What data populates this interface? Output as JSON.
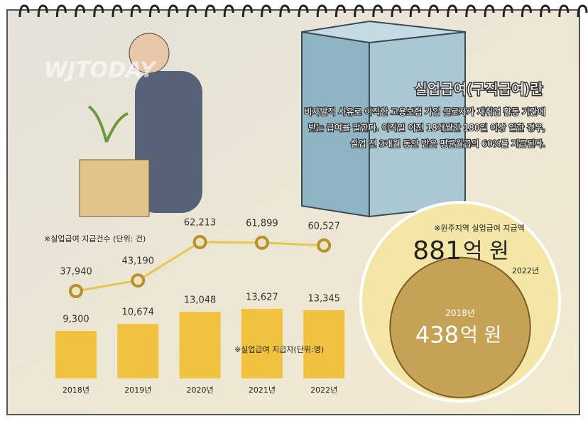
{
  "header": {
    "watermark": "WJTODAY",
    "title": "실업급여(구직급여)란",
    "description": [
      "비자발적 사유로 이직한 고용보험 가입 근로자가 재취업 활동 기간에",
      "받는 급여를 말한다. 이직일 이전 18개월간 180일 이상 일한 경우,",
      "실업 전 3개월 동안 받은 평균월급의 60%를 지급된다."
    ]
  },
  "chart_data": [
    {
      "type": "line",
      "label": "※실업급여 지급건수 (단위: 건)",
      "values": [
        37940,
        43190,
        62213,
        61899,
        60527
      ],
      "value_labels": [
        "37,940",
        "43,190",
        "62,213",
        "61,899",
        "60,527"
      ],
      "color": "#e6c64c"
    },
    {
      "type": "bar",
      "label": "※실업급여 지급자(단위:명)",
      "categories": [
        "2018년",
        "2019년",
        "2020년",
        "2021년",
        "2022년"
      ],
      "values": [
        9300,
        10674,
        13048,
        13627,
        13345
      ],
      "value_labels": [
        "9,300",
        "10,674",
        "13,048",
        "13,627",
        "13,345"
      ],
      "color": "#f1c240"
    },
    {
      "type": "bubble",
      "label": "※원주지역 실업급여 지급액",
      "unit": "억 원",
      "categories": [
        "2022년",
        "2018년"
      ],
      "values": [
        881,
        438
      ],
      "colors": [
        "#f4e6a6",
        "#c6a256"
      ]
    }
  ]
}
